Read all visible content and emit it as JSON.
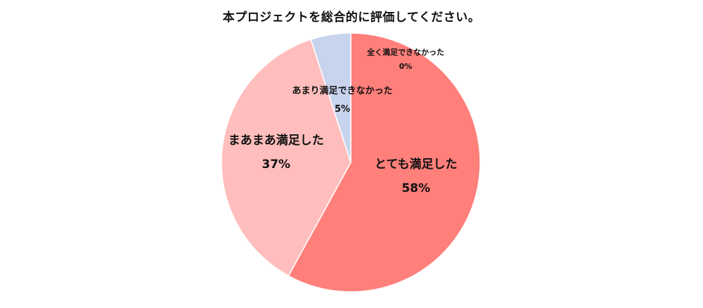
{
  "chart_data": {
    "type": "pie",
    "title": "本プロジェクトを総合的に評価してください。",
    "slices": [
      {
        "label": "とても満足した",
        "value": 58,
        "display": "58%",
        "color": "#ff7f7b"
      },
      {
        "label": "まあまあ満足した",
        "value": 37,
        "display": "37%",
        "color": "#ffbebd"
      },
      {
        "label": "あまり満足できなかった",
        "value": 5,
        "display": "5%",
        "color": "#c8d4ee"
      },
      {
        "label": "全く満足できなかった",
        "value": 0,
        "display": "0%",
        "color": "#ffffff"
      }
    ],
    "start": "12 o'clock",
    "direction": "clockwise",
    "legend": "none"
  }
}
